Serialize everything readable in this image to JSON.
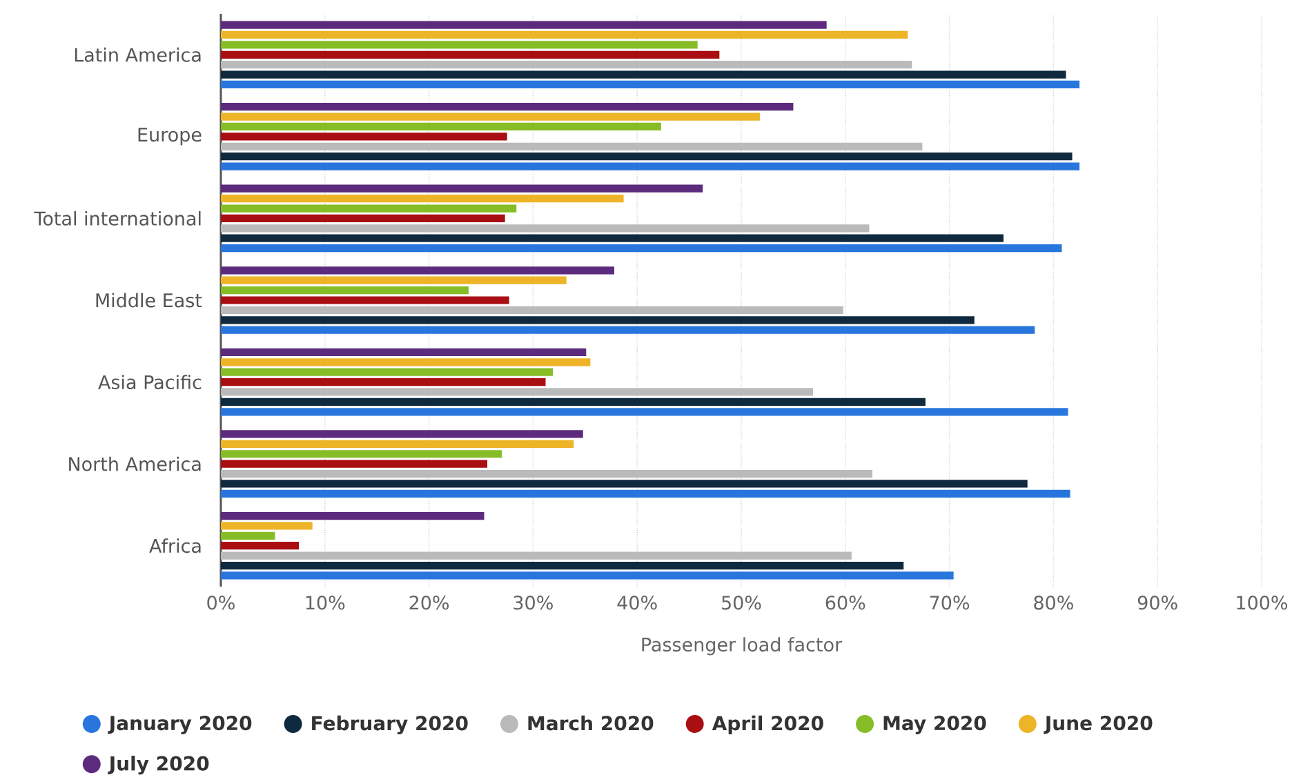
{
  "chart_data": {
    "type": "bar",
    "orientation": "horizontal",
    "categories": [
      "Latin America",
      "Europe",
      "Total international",
      "Middle East",
      "Asia Pacific",
      "North America",
      "Africa"
    ],
    "series": [
      {
        "name": "January 2020",
        "color": "#2876dd",
        "values": [
          82.5,
          82.5,
          80.8,
          78.2,
          81.4,
          81.6,
          70.4
        ]
      },
      {
        "name": "February 2020",
        "color": "#0f2a3f",
        "values": [
          81.2,
          81.8,
          75.2,
          72.4,
          67.7,
          77.5,
          65.6
        ]
      },
      {
        "name": "March 2020",
        "color": "#bababa",
        "values": [
          66.4,
          67.4,
          62.3,
          59.8,
          56.9,
          62.6,
          60.6
        ]
      },
      {
        "name": "April 2020",
        "color": "#a90f12",
        "values": [
          47.9,
          27.5,
          27.3,
          27.7,
          31.2,
          25.6,
          7.5
        ]
      },
      {
        "name": "May 2020",
        "color": "#86bc25",
        "values": [
          45.8,
          42.3,
          28.4,
          23.8,
          31.9,
          27.0,
          5.2
        ]
      },
      {
        "name": "June 2020",
        "color": "#edb427",
        "values": [
          66.0,
          51.8,
          38.7,
          33.2,
          35.5,
          33.9,
          8.8
        ]
      },
      {
        "name": "July 2020",
        "color": "#5c2b7d",
        "values": [
          58.2,
          55.0,
          46.3,
          37.8,
          35.1,
          34.8,
          25.3
        ]
      }
    ],
    "xlabel": "Passenger load factor",
    "xlim": [
      0,
      100
    ],
    "xticks": [
      {
        "value": 0,
        "label": "0%"
      },
      {
        "value": 10,
        "label": "10%"
      },
      {
        "value": 20,
        "label": "20%"
      },
      {
        "value": 30,
        "label": "30%"
      },
      {
        "value": 40,
        "label": "40%"
      },
      {
        "value": 50,
        "label": "50%"
      },
      {
        "value": 60,
        "label": "60%"
      },
      {
        "value": 70,
        "label": "70%"
      },
      {
        "value": 80,
        "label": "80%"
      },
      {
        "value": 90,
        "label": "90%"
      },
      {
        "value": 100,
        "label": "100%"
      }
    ],
    "grid": "x",
    "legend": "bottom"
  }
}
